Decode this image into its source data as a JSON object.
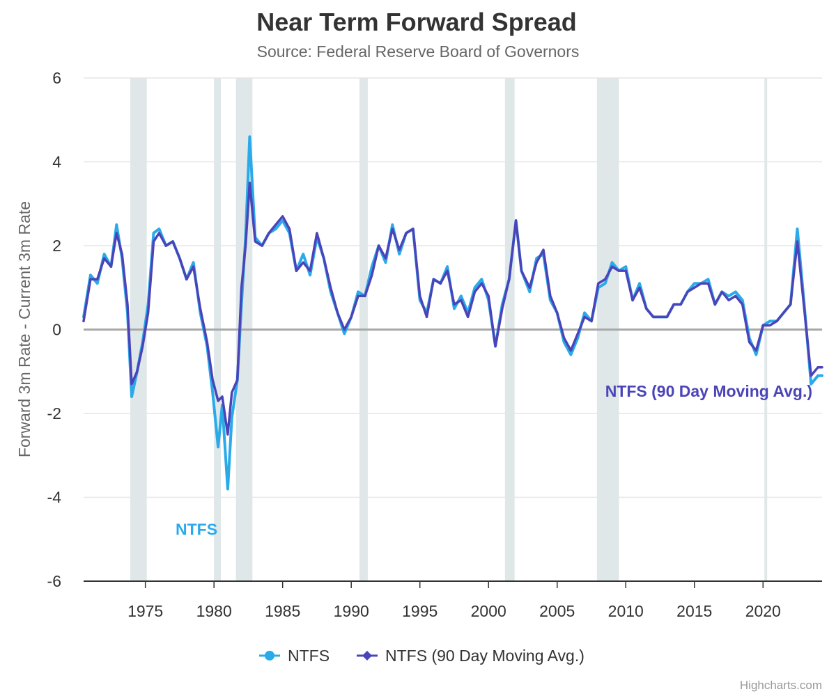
{
  "chart_data": {
    "type": "line",
    "title": "Near Term Forward Spread",
    "subtitle": "Source: Federal Reserve Board of Governors",
    "ylabel": "Forward 3m Rate - Current 3m Rate",
    "xlabel": "",
    "xlim": [
      1970.5,
      2024.3
    ],
    "ylim": [
      -6,
      6
    ],
    "x_ticks": [
      1975,
      1980,
      1985,
      1990,
      1995,
      2000,
      2005,
      2010,
      2015,
      2020
    ],
    "y_ticks": [
      -6,
      -4,
      -2,
      0,
      2,
      4,
      6
    ],
    "grid": true,
    "legend": "bottom-center",
    "credits": "Highcharts.com",
    "zero_line": 0,
    "recessions": [
      [
        1973.9,
        1975.1
      ],
      [
        1980.0,
        1980.5
      ],
      [
        1981.6,
        1982.8
      ],
      [
        1990.6,
        1991.2
      ],
      [
        2001.2,
        2001.9
      ],
      [
        2007.9,
        2009.5
      ],
      [
        2020.1,
        2020.3
      ]
    ],
    "annotations": [
      {
        "text": "NTFS",
        "x": 1977.2,
        "y": -4.9,
        "color": "#2aaae9"
      },
      {
        "text": "NTFS (90 Day Moving Avg.)",
        "x": 2008.5,
        "y": -1.6,
        "color": "#4b44b9"
      }
    ],
    "series": [
      {
        "name": "NTFS",
        "color": "#2aaae9",
        "x": [
          1970.5,
          1971.0,
          1971.5,
          1972.0,
          1972.5,
          1972.9,
          1973.3,
          1973.7,
          1974.0,
          1974.4,
          1974.8,
          1975.2,
          1975.6,
          1976.0,
          1976.5,
          1977.0,
          1977.5,
          1978.0,
          1978.5,
          1979.0,
          1979.5,
          1979.9,
          1980.3,
          1980.6,
          1981.0,
          1981.3,
          1981.7,
          1982.0,
          1982.3,
          1982.6,
          1983.0,
          1983.5,
          1984.0,
          1984.5,
          1985.0,
          1985.5,
          1986.0,
          1986.5,
          1987.0,
          1987.5,
          1988.0,
          1988.5,
          1989.0,
          1989.5,
          1990.0,
          1990.5,
          1991.0,
          1991.5,
          1992.0,
          1992.5,
          1993.0,
          1993.5,
          1994.0,
          1994.5,
          1995.0,
          1995.5,
          1996.0,
          1996.5,
          1997.0,
          1997.5,
          1998.0,
          1998.5,
          1999.0,
          1999.5,
          2000.0,
          2000.5,
          2001.0,
          2001.5,
          2002.0,
          2002.4,
          2003.0,
          2003.5,
          2004.0,
          2004.5,
          2005.0,
          2005.5,
          2006.0,
          2006.5,
          2007.0,
          2007.5,
          2008.0,
          2008.5,
          2009.0,
          2009.5,
          2010.0,
          2010.5,
          2011.0,
          2011.5,
          2012.0,
          2012.5,
          2013.0,
          2013.5,
          2014.0,
          2014.5,
          2015.0,
          2015.5,
          2016.0,
          2016.5,
          2017.0,
          2017.5,
          2018.0,
          2018.5,
          2019.0,
          2019.5,
          2020.0,
          2020.5,
          2021.0,
          2021.5,
          2022.0,
          2022.5,
          2023.0,
          2023.5,
          2024.0,
          2024.3
        ],
        "values": [
          0.3,
          1.3,
          1.1,
          1.8,
          1.5,
          2.5,
          1.7,
          0.4,
          -1.6,
          -1.0,
          -0.3,
          0.6,
          2.3,
          2.4,
          2.0,
          2.1,
          1.7,
          1.2,
          1.6,
          0.4,
          -0.4,
          -1.5,
          -2.8,
          -1.8,
          -3.8,
          -2.1,
          -1.2,
          0.6,
          2.2,
          4.6,
          2.2,
          2.0,
          2.3,
          2.4,
          2.6,
          2.3,
          1.4,
          1.8,
          1.3,
          2.2,
          1.7,
          0.9,
          0.4,
          -0.1,
          0.3,
          0.9,
          0.8,
          1.5,
          2.0,
          1.6,
          2.5,
          1.8,
          2.3,
          2.4,
          0.7,
          0.4,
          1.2,
          1.1,
          1.5,
          0.5,
          0.8,
          0.4,
          1.0,
          1.2,
          0.7,
          -0.4,
          0.6,
          1.2,
          2.6,
          1.4,
          0.9,
          1.7,
          1.8,
          0.7,
          0.4,
          -0.3,
          -0.6,
          -0.2,
          0.4,
          0.2,
          1.0,
          1.1,
          1.6,
          1.4,
          1.5,
          0.7,
          1.1,
          0.5,
          0.3,
          0.3,
          0.3,
          0.6,
          0.6,
          0.9,
          1.1,
          1.1,
          1.2,
          0.6,
          0.9,
          0.8,
          0.9,
          0.7,
          -0.2,
          -0.6,
          0.1,
          0.2,
          0.2,
          0.4,
          0.6,
          2.4,
          0.6,
          -1.3,
          -1.1,
          -1.1
        ]
      },
      {
        "name": "NTFS (90 Day Moving Avg.)",
        "color": "#4b44b9",
        "x": [
          1970.5,
          1971.0,
          1971.5,
          1972.0,
          1972.5,
          1972.9,
          1973.3,
          1973.7,
          1974.0,
          1974.4,
          1974.8,
          1975.2,
          1975.6,
          1976.0,
          1976.5,
          1977.0,
          1977.5,
          1978.0,
          1978.5,
          1979.0,
          1979.5,
          1979.9,
          1980.3,
          1980.6,
          1981.0,
          1981.3,
          1981.7,
          1982.0,
          1982.3,
          1982.6,
          1983.0,
          1983.5,
          1984.0,
          1984.5,
          1985.0,
          1985.5,
          1986.0,
          1986.5,
          1987.0,
          1987.5,
          1988.0,
          1988.5,
          1989.0,
          1989.5,
          1990.0,
          1990.5,
          1991.0,
          1991.5,
          1992.0,
          1992.5,
          1993.0,
          1993.5,
          1994.0,
          1994.5,
          1995.0,
          1995.5,
          1996.0,
          1996.5,
          1997.0,
          1997.5,
          1998.0,
          1998.5,
          1999.0,
          1999.5,
          2000.0,
          2000.5,
          2001.0,
          2001.5,
          2002.0,
          2002.4,
          2003.0,
          2003.5,
          2004.0,
          2004.5,
          2005.0,
          2005.5,
          2006.0,
          2006.5,
          2007.0,
          2007.5,
          2008.0,
          2008.5,
          2009.0,
          2009.5,
          2010.0,
          2010.5,
          2011.0,
          2011.5,
          2012.0,
          2012.5,
          2013.0,
          2013.5,
          2014.0,
          2014.5,
          2015.0,
          2015.5,
          2016.0,
          2016.5,
          2017.0,
          2017.5,
          2018.0,
          2018.5,
          2019.0,
          2019.5,
          2020.0,
          2020.5,
          2021.0,
          2021.5,
          2022.0,
          2022.5,
          2023.0,
          2023.5,
          2024.0,
          2024.3
        ],
        "values": [
          0.2,
          1.2,
          1.2,
          1.7,
          1.5,
          2.3,
          1.8,
          0.6,
          -1.3,
          -1.0,
          -0.4,
          0.4,
          2.1,
          2.3,
          2.0,
          2.1,
          1.7,
          1.2,
          1.5,
          0.5,
          -0.3,
          -1.2,
          -1.7,
          -1.6,
          -2.5,
          -1.5,
          -1.2,
          1.0,
          2.0,
          3.5,
          2.1,
          2.0,
          2.3,
          2.5,
          2.7,
          2.4,
          1.4,
          1.6,
          1.4,
          2.3,
          1.7,
          1.0,
          0.4,
          0.0,
          0.3,
          0.8,
          0.8,
          1.3,
          2.0,
          1.7,
          2.4,
          1.9,
          2.3,
          2.4,
          0.8,
          0.3,
          1.2,
          1.1,
          1.4,
          0.6,
          0.7,
          0.3,
          0.9,
          1.1,
          0.8,
          -0.4,
          0.5,
          1.2,
          2.6,
          1.4,
          1.0,
          1.6,
          1.9,
          0.8,
          0.4,
          -0.2,
          -0.5,
          -0.1,
          0.3,
          0.2,
          1.1,
          1.2,
          1.5,
          1.4,
          1.4,
          0.7,
          1.0,
          0.5,
          0.3,
          0.3,
          0.3,
          0.6,
          0.6,
          0.9,
          1.0,
          1.1,
          1.1,
          0.6,
          0.9,
          0.7,
          0.8,
          0.6,
          -0.3,
          -0.5,
          0.1,
          0.1,
          0.2,
          0.4,
          0.6,
          2.1,
          0.5,
          -1.1,
          -0.9,
          -0.9
        ]
      }
    ]
  }
}
